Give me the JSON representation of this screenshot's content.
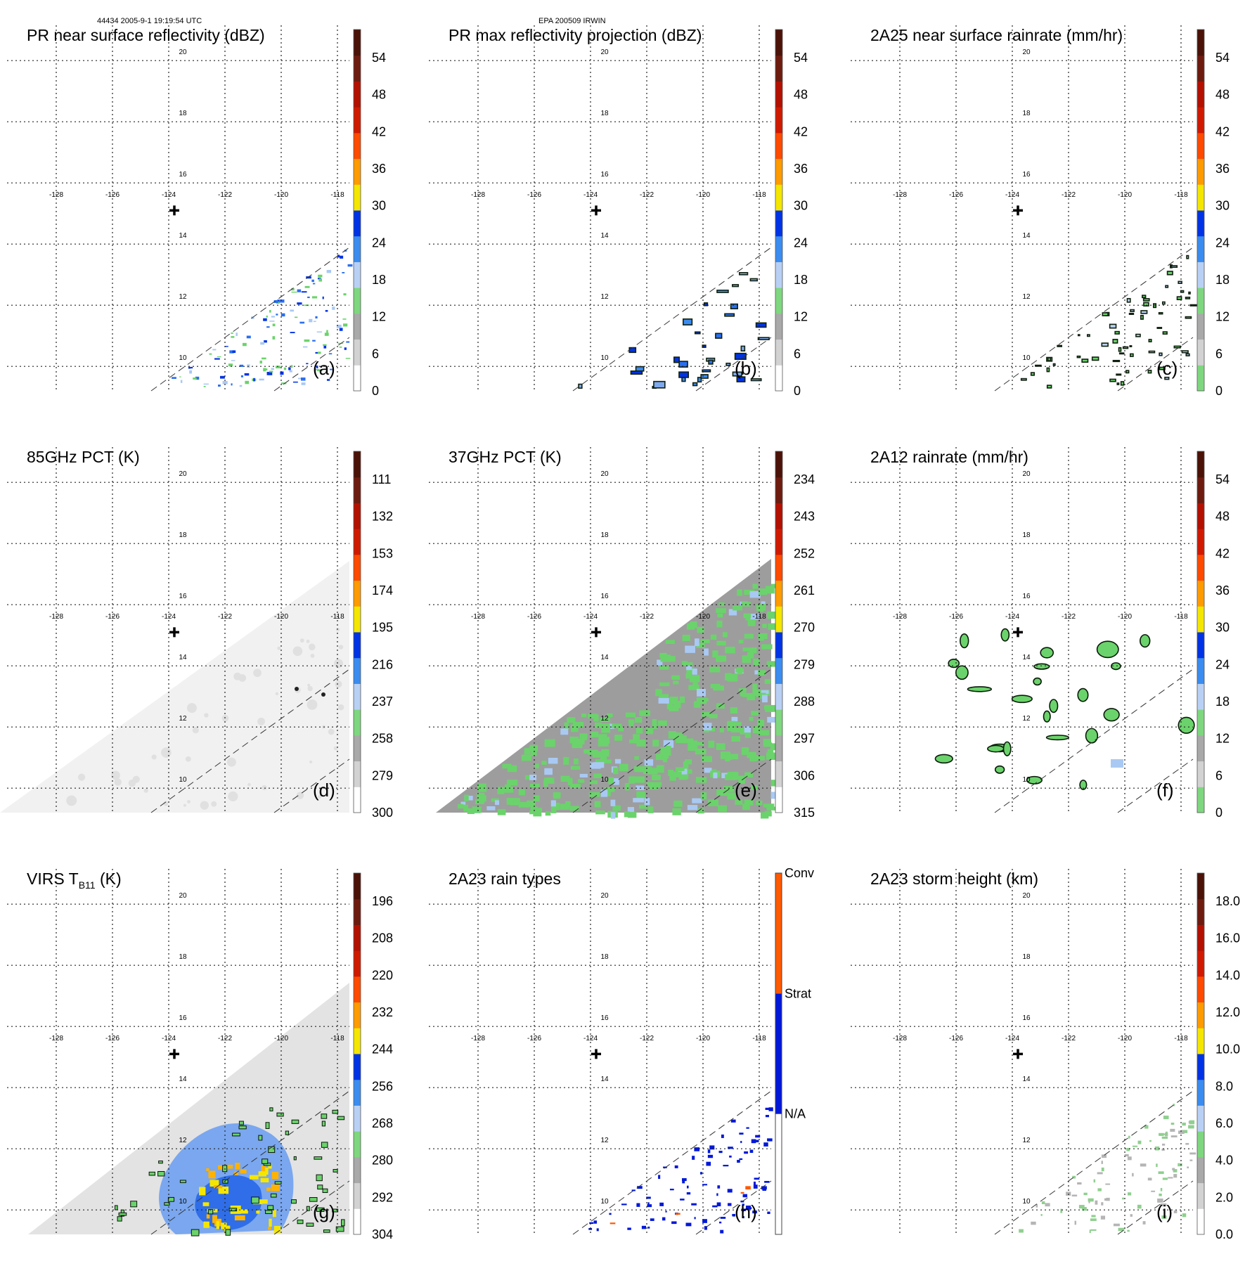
{
  "header": {
    "left": "44434 2005-9-1 19:19:54 UTC",
    "center": "EPA 200509 IRWIN"
  },
  "colors": {
    "colorbar_12": [
      "#ffffff",
      "#d2d2d2",
      "#a9a9a9",
      "#7ed77e",
      "#b9d0f5",
      "#3a8cf0",
      "#0033e6",
      "#f5e600",
      "#ff9b00",
      "#ff4a00",
      "#d01a00",
      "#b31000",
      "#6e1b0f",
      "#4b1208"
    ],
    "rain_types": [
      "#ffffff",
      "#0018d9",
      "#ff5a00"
    ],
    "plot_green": "#6bd36b",
    "plot_blue": "#2b6ff0",
    "plot_gray": "#9a9a9a"
  },
  "map": {
    "lon_ticks": [
      "-128",
      "-126",
      "-124",
      "-122",
      "-120",
      "-118"
    ],
    "lat_ticks": [
      "20",
      "18",
      "16",
      "14",
      "12",
      "10"
    ]
  },
  "chart_data": [
    {
      "type": "heatmap",
      "title": "PR near surface reflectivity (dBZ)",
      "label": "(a)",
      "colorbar": [
        "0",
        "6",
        "12",
        "18",
        "24",
        "30",
        "36",
        "42",
        "48",
        "54"
      ],
      "colorbar_kind": "scale",
      "field": "scattered_echo",
      "extent": {
        "lon": [
          -129.5,
          -117.5
        ],
        "lat": [
          9.5,
          21.0
        ]
      }
    },
    {
      "type": "heatmap",
      "title": "PR max reflectivity projection (dBZ)",
      "label": "(b)",
      "colorbar": [
        "0",
        "6",
        "12",
        "18",
        "24",
        "30",
        "36",
        "42",
        "48",
        "54"
      ],
      "colorbar_kind": "scale",
      "field": "contoured_echo",
      "extent": {
        "lon": [
          -129.5,
          -117.5
        ],
        "lat": [
          9.5,
          21.0
        ]
      }
    },
    {
      "type": "heatmap",
      "title": "2A25 near surface rainrate (mm/hr)",
      "label": "(c)",
      "colorbar": [
        "0",
        "6",
        "12",
        "18",
        "24",
        "30",
        "36",
        "42",
        "48",
        "54"
      ],
      "colorbar_kind": "scale_nowhite",
      "field": "contoured_rain",
      "extent": {
        "lon": [
          -129.5,
          -117.5
        ],
        "lat": [
          9.5,
          21.0
        ]
      }
    },
    {
      "type": "heatmap",
      "title": "85GHz PCT (K)",
      "label": "(d)",
      "colorbar": [
        "300",
        "279",
        "258",
        "237",
        "216",
        "195",
        "174",
        "153",
        "132",
        "111"
      ],
      "colorbar_kind": "scale",
      "field": "light_gray_swath",
      "extent": {
        "lon": [
          -129.5,
          -117.5
        ],
        "lat": [
          9.5,
          21.0
        ]
      }
    },
    {
      "type": "heatmap",
      "title": "37GHz PCT (K)",
      "label": "(e)",
      "colorbar": [
        "315",
        "306",
        "297",
        "288",
        "279",
        "270",
        "261",
        "252",
        "243",
        "234"
      ],
      "colorbar_kind": "scale",
      "field": "gray_green_swath",
      "extent": {
        "lon": [
          -129.5,
          -117.5
        ],
        "lat": [
          9.5,
          21.0
        ]
      }
    },
    {
      "type": "heatmap",
      "title": "2A12 rainrate (mm/hr)",
      "label": "(f)",
      "colorbar": [
        "0",
        "6",
        "12",
        "18",
        "24",
        "30",
        "36",
        "42",
        "48",
        "54"
      ],
      "colorbar_kind": "scale_nowhite",
      "field": "green_blobs",
      "extent": {
        "lon": [
          -129.5,
          -117.5
        ],
        "lat": [
          9.5,
          21.0
        ]
      }
    },
    {
      "type": "heatmap",
      "title": "VIRS T",
      "title_sub": "B11",
      "title_tail": " (K)",
      "label": "(g)",
      "colorbar": [
        "304",
        "292",
        "280",
        "268",
        "256",
        "244",
        "232",
        "220",
        "208",
        "196"
      ],
      "colorbar_kind": "scale",
      "field": "cloud_swath",
      "extent": {
        "lon": [
          -129.5,
          -117.5
        ],
        "lat": [
          9.5,
          21.0
        ]
      }
    },
    {
      "type": "heatmap",
      "title": "2A23 rain types",
      "label": "(h)",
      "colorbar": [
        "N/A",
        "Strat",
        "Conv"
      ],
      "colorbar_kind": "categorical",
      "field": "rain_types",
      "extent": {
        "lon": [
          -129.5,
          -117.5
        ],
        "lat": [
          9.5,
          21.0
        ]
      }
    },
    {
      "type": "heatmap",
      "title": "2A23 storm height (km)",
      "label": "(i)",
      "colorbar": [
        "0.0",
        "2.0",
        "4.0",
        "6.0",
        "8.0",
        "10.0",
        "12.0",
        "14.0",
        "16.0",
        "18.0"
      ],
      "colorbar_kind": "scale",
      "field": "gray_green_echo",
      "extent": {
        "lon": [
          -129.5,
          -117.5
        ],
        "lat": [
          9.5,
          21.0
        ]
      }
    }
  ]
}
